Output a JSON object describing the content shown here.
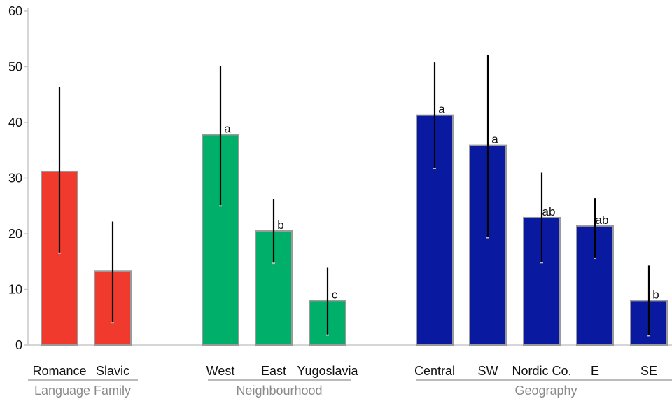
{
  "chart_data": {
    "type": "bar",
    "title": "",
    "xlabel": "",
    "ylabel": "",
    "ylim": [
      0,
      60
    ],
    "yticks": [
      "0",
      "10",
      "20",
      "30",
      "40",
      "50",
      "60"
    ],
    "grid": false,
    "groups": [
      {
        "name": "Language Family",
        "color": "#f03a2e",
        "bars": [
          {
            "category": "Romance",
            "value": 31.2,
            "err_low": 16.5,
            "err_high": 46.3,
            "letter": ""
          },
          {
            "category": "Slavic",
            "value": 13.3,
            "err_low": 4.0,
            "err_high": 22.2,
            "letter": ""
          }
        ]
      },
      {
        "name": "Neighbourhood",
        "color": "#00b06a",
        "bars": [
          {
            "category": "West",
            "value": 37.8,
            "err_low": 25.0,
            "err_high": 50.1,
            "letter": "a"
          },
          {
            "category": "East",
            "value": 20.5,
            "err_low": 14.7,
            "err_high": 26.2,
            "letter": "b"
          },
          {
            "category": "Yugoslavia",
            "value": 8.0,
            "err_low": 1.8,
            "err_high": 13.9,
            "letter": "c"
          }
        ]
      },
      {
        "name": "Geography",
        "color": "#0a1aa0",
        "bars": [
          {
            "category": "Central",
            "value": 41.3,
            "err_low": 31.7,
            "err_high": 50.8,
            "letter": "a"
          },
          {
            "category": "SW",
            "value": 35.9,
            "err_low": 19.3,
            "err_high": 52.2,
            "letter": "a"
          },
          {
            "category": "Nordic Co.",
            "value": 22.9,
            "err_low": 14.8,
            "err_high": 31.0,
            "letter": "ab"
          },
          {
            "category": "E",
            "value": 21.4,
            "err_low": 15.6,
            "err_high": 26.4,
            "letter": "ab"
          },
          {
            "category": "SE",
            "value": 8.0,
            "err_low": 1.7,
            "err_high": 14.3,
            "letter": "b"
          }
        ]
      }
    ]
  }
}
